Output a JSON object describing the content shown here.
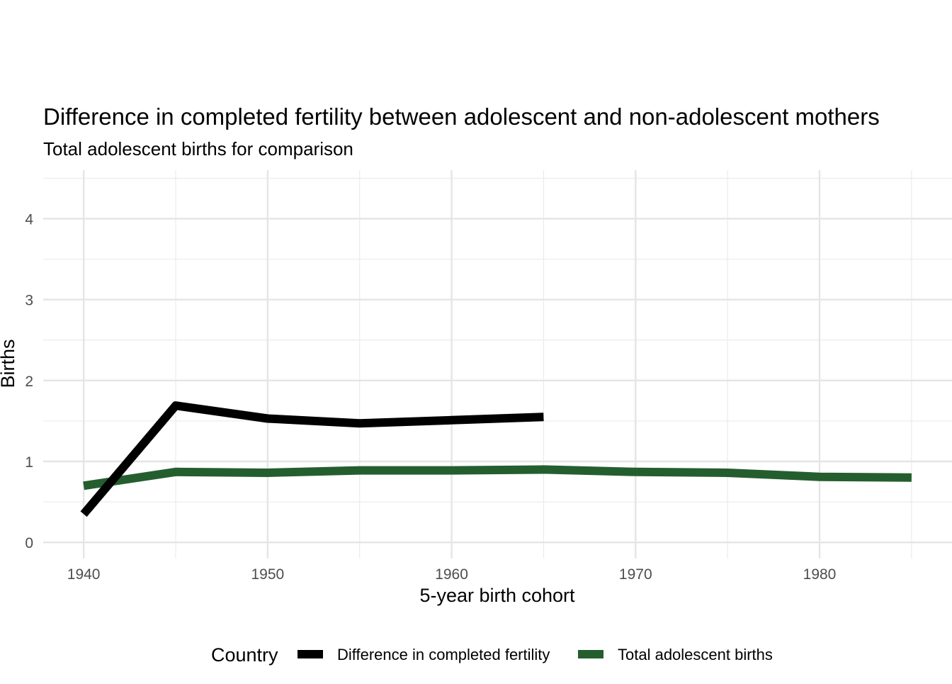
{
  "chart_data": {
    "type": "line",
    "title": "Difference in completed fertility between adolescent and non-adolescent mothers",
    "subtitle": "Total adolescent births for comparison",
    "xlabel": "5-year birth cohort",
    "ylabel": "Births",
    "xlim": [
      1937.8,
      1987.2
    ],
    "ylim": [
      -0.2,
      4.6
    ],
    "x_ticks": [
      1940,
      1950,
      1960,
      1970,
      1980
    ],
    "x_minor_grid": [
      1945,
      1955,
      1965,
      1975,
      1985
    ],
    "y_ticks": [
      0,
      1,
      2,
      3,
      4
    ],
    "y_minor_grid": [
      0.5,
      1.5,
      2.5,
      3.5,
      4.5
    ],
    "grid": true,
    "legend": {
      "title": "Country",
      "position": "bottom"
    },
    "series": [
      {
        "name": "Difference in completed fertility",
        "color": "#000000",
        "x": [
          1940,
          1945,
          1950,
          1955,
          1960,
          1965
        ],
        "values": [
          0.35,
          1.69,
          1.53,
          1.47,
          1.51,
          1.55
        ]
      },
      {
        "name": "Total adolescent births",
        "color": "#245e2f",
        "x": [
          1940,
          1945,
          1950,
          1955,
          1960,
          1965,
          1970,
          1975,
          1980,
          1985
        ],
        "values": [
          0.7,
          0.87,
          0.86,
          0.89,
          0.89,
          0.9,
          0.87,
          0.86,
          0.81,
          0.8
        ]
      }
    ]
  }
}
